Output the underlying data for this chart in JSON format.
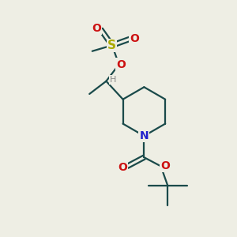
{
  "bg_color": "#eeeee4",
  "bond_color": "#1a4a4a",
  "nitrogen_color": "#2020cc",
  "oxygen_color": "#cc1111",
  "sulfur_color": "#aaaa00",
  "hydrogen_color": "#888888",
  "line_width": 1.6,
  "figsize": [
    3.0,
    3.0
  ],
  "dpi": 100,
  "xlim": [
    0,
    10
  ],
  "ylim": [
    0,
    10
  ]
}
